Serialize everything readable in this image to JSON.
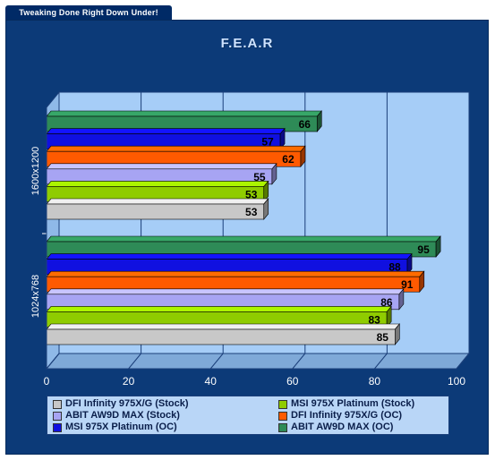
{
  "header": {
    "tagline": "Tweaking Done Right Down Under!"
  },
  "chart_data": {
    "type": "bar",
    "orientation": "horizontal",
    "title": "F.E.A.R",
    "categories": [
      "1600x1200",
      "1024x768"
    ],
    "series": [
      {
        "name": "DFI Infinity 975X/G (Stock)",
        "color": "#c8c8c8",
        "values": [
          53,
          85
        ]
      },
      {
        "name": "MSI 975X Platinum (Stock)",
        "color": "#8fcc00",
        "values": [
          53,
          83
        ]
      },
      {
        "name": "ABIT AW9D MAX (Stock)",
        "color": "#a7a4f3",
        "values": [
          55,
          86
        ]
      },
      {
        "name": "DFI Infinity 975X/G (OC)",
        "color": "#ff5a00",
        "values": [
          62,
          91
        ]
      },
      {
        "name": "MSI 975X Platinum (OC)",
        "color": "#1010e0",
        "values": [
          57,
          88
        ]
      },
      {
        "name": "ABIT AW9D MAX (OC)",
        "color": "#2e8b57",
        "values": [
          66,
          95
        ]
      }
    ],
    "xlim": [
      0,
      100
    ],
    "xticks": [
      0,
      20,
      40,
      60,
      80,
      100
    ],
    "grid": true,
    "legend_position": "bottom"
  }
}
